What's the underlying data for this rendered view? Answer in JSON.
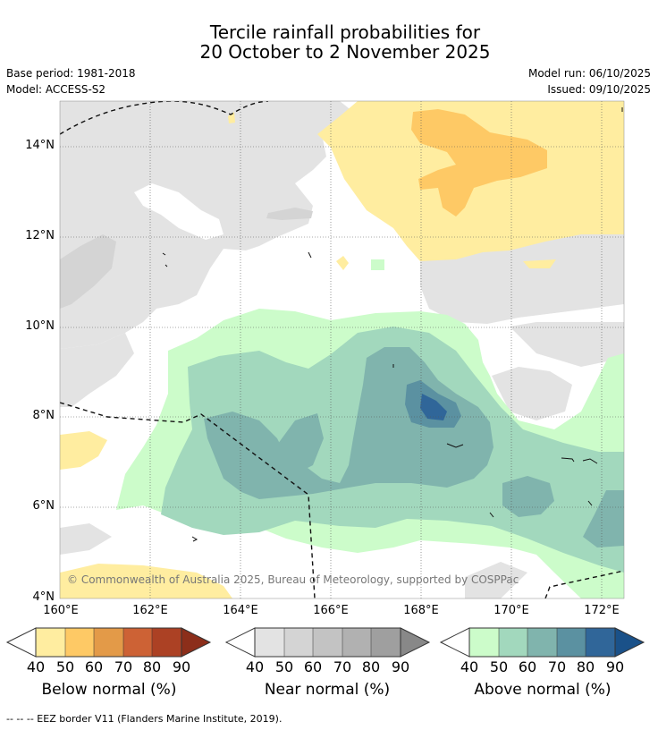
{
  "title_line1": "Tercile rainfall probabilities for",
  "title_line2": "20 October to 2 November 2025",
  "base_period": "Base period: 1981-2018",
  "model": "Model: ACCESS-S2",
  "model_run": "Model run: 06/10/2025",
  "issued": "Issued: 09/10/2025",
  "copyright": "© Commonwealth of Australia 2025, Bureau of Meteorology, supported by COSPPac",
  "footnote": "--  --  -- EEZ border V11 (Flanders Marine Institute, 2019).",
  "map": {
    "lat_labels": [
      "14°N",
      "12°N",
      "10°N",
      "8°N",
      "6°N",
      "4°N"
    ],
    "lon_labels": [
      "160°E",
      "162°E",
      "164°E",
      "166°E",
      "168°E",
      "170°E",
      "172°E"
    ],
    "region": "Western Pacific, 4°N–15°N, 160°E–172.5°E"
  },
  "legend": {
    "below": {
      "title": "Below normal (%)",
      "ticks": [
        "40",
        "50",
        "60",
        "70",
        "80",
        "90"
      ],
      "colors": [
        "#ffeda0",
        "#fec965",
        "#e39a48",
        "#cd6235",
        "#ac4124",
        "#8c2e1a"
      ]
    },
    "near": {
      "title": "Near normal (%)",
      "ticks": [
        "40",
        "50",
        "60",
        "70",
        "80",
        "90"
      ],
      "colors": [
        "#e3e3e3",
        "#d4d4d4",
        "#c3c3c3",
        "#b1b1b1",
        "#9f9f9f",
        "#888888"
      ]
    },
    "above": {
      "title": "Above normal (%)",
      "ticks": [
        "40",
        "50",
        "60",
        "70",
        "80",
        "90"
      ],
      "colors": [
        "#ccfcca",
        "#a2d8bd",
        "#80b4ad",
        "#5b91a1",
        "#306699",
        "#1a5189"
      ]
    }
  },
  "colors": {
    "grid": "#555555",
    "eez": "#111111"
  }
}
